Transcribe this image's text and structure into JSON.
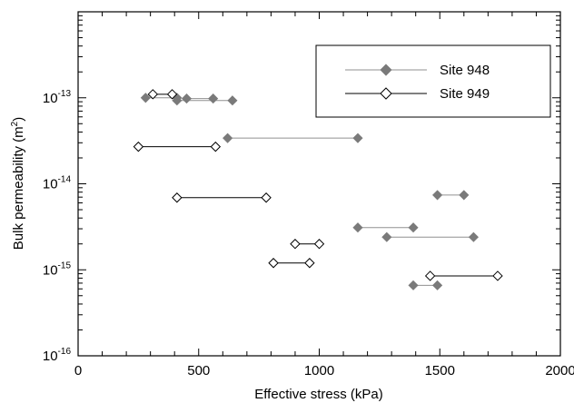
{
  "chart_data": {
    "type": "scatter",
    "xlabel": "Effective stress (kPa)",
    "ylabel_main": "Bulk permeability (m",
    "ylabel_sup": "2",
    "ylabel_close": ")",
    "xlim": [
      0,
      2000
    ],
    "ylim_log10": [
      -16,
      -12
    ],
    "y_scale": "log",
    "x_ticks": [
      0,
      500,
      1000,
      1500,
      2000
    ],
    "x_tick_labels": [
      "0",
      "500",
      "1000",
      "1500",
      "2000"
    ],
    "y_ticks_log10": [
      -16,
      -15,
      -14,
      -13
    ],
    "y_tick_labels": [
      {
        "base": "10",
        "exp": "-16"
      },
      {
        "base": "10",
        "exp": "-15"
      },
      {
        "base": "10",
        "exp": "-14"
      },
      {
        "base": "10",
        "exp": "-13"
      }
    ],
    "legend_position": "top-right",
    "series": [
      {
        "name": "Site 948",
        "marker": "filled-diamond",
        "color": "#7a7a7a",
        "line_color": "#909090",
        "segments": [
          [
            [
              280,
              1e-13
            ],
            [
              410,
              1e-13
            ]
          ],
          [
            [
              410,
              9.3e-14
            ],
            [
              640,
              9.3e-14
            ]
          ],
          [
            [
              450,
              9.8e-14
            ],
            [
              560,
              9.8e-14
            ]
          ],
          [
            [
              620,
              3.4e-14
            ],
            [
              1160,
              3.4e-14
            ]
          ],
          [
            [
              1160,
              3.1e-15
            ],
            [
              1390,
              3.1e-15
            ]
          ],
          [
            [
              1280,
              2.4e-15
            ],
            [
              1640,
              2.4e-15
            ]
          ],
          [
            [
              1490,
              7.4e-15
            ],
            [
              1600,
              7.4e-15
            ]
          ],
          [
            [
              1390,
              6.6e-16
            ],
            [
              1490,
              6.6e-16
            ]
          ]
        ]
      },
      {
        "name": "Site 949",
        "marker": "open-diamond",
        "color": "#000000",
        "line_color": "#000000",
        "segments": [
          [
            [
              310,
              1.1e-13
            ],
            [
              390,
              1.1e-13
            ]
          ],
          [
            [
              250,
              2.7e-14
            ],
            [
              570,
              2.7e-14
            ]
          ],
          [
            [
              410,
              6.9e-15
            ],
            [
              780,
              6.9e-15
            ]
          ],
          [
            [
              900,
              2e-15
            ],
            [
              1000,
              2e-15
            ]
          ],
          [
            [
              810,
              1.2e-15
            ],
            [
              960,
              1.2e-15
            ]
          ],
          [
            [
              1460,
              8.5e-16
            ],
            [
              1740,
              8.5e-16
            ]
          ]
        ]
      }
    ]
  }
}
